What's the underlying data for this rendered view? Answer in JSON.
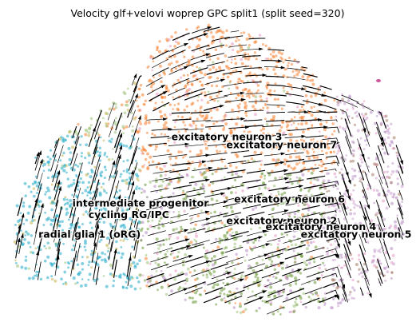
{
  "chart_data": {
    "type": "scatter",
    "title": "Velocity glf+velovi woprep GPC split1 (split seed=320)",
    "xlabel": "",
    "ylabel": "",
    "overlay": "velocity streamlines",
    "grid": false,
    "legend": "on data",
    "xlim": [
      0,
      10
    ],
    "ylim": [
      0,
      7.5
    ],
    "clusters": [
      {
        "label": "excitatory neuron 3",
        "x": 5.5,
        "y": 4.6,
        "color": "#f58232"
      },
      {
        "label": "excitatory neuron 7",
        "x": 6.9,
        "y": 4.4,
        "color": "#f58232"
      },
      {
        "label": "excitatory neuron 6",
        "x": 7.1,
        "y": 3.0,
        "color": "#b68dc4"
      },
      {
        "label": "excitatory neuron 2",
        "x": 6.9,
        "y": 2.45,
        "color": "#6e9b3a"
      },
      {
        "label": "excitatory neuron 4",
        "x": 7.9,
        "y": 2.3,
        "color": "#c8a0cf"
      },
      {
        "label": "excitatory neuron 5",
        "x": 8.8,
        "y": 2.1,
        "color": "#b48cbf"
      },
      {
        "label": "intermediate progenitor",
        "x": 3.3,
        "y": 2.9,
        "color": "#9fc37a"
      },
      {
        "label": "cycling RG/IPC",
        "x": 3.0,
        "y": 2.6,
        "color": "#c5b24a"
      },
      {
        "label": "radial glia 1 (oRG)",
        "x": 2.0,
        "y": 2.1,
        "color": "#1fa9c9"
      }
    ],
    "extra_colors": {
      "pink": "#e59ac5",
      "brown": "#a57b6a",
      "dark_pink": "#d0559a"
    }
  }
}
